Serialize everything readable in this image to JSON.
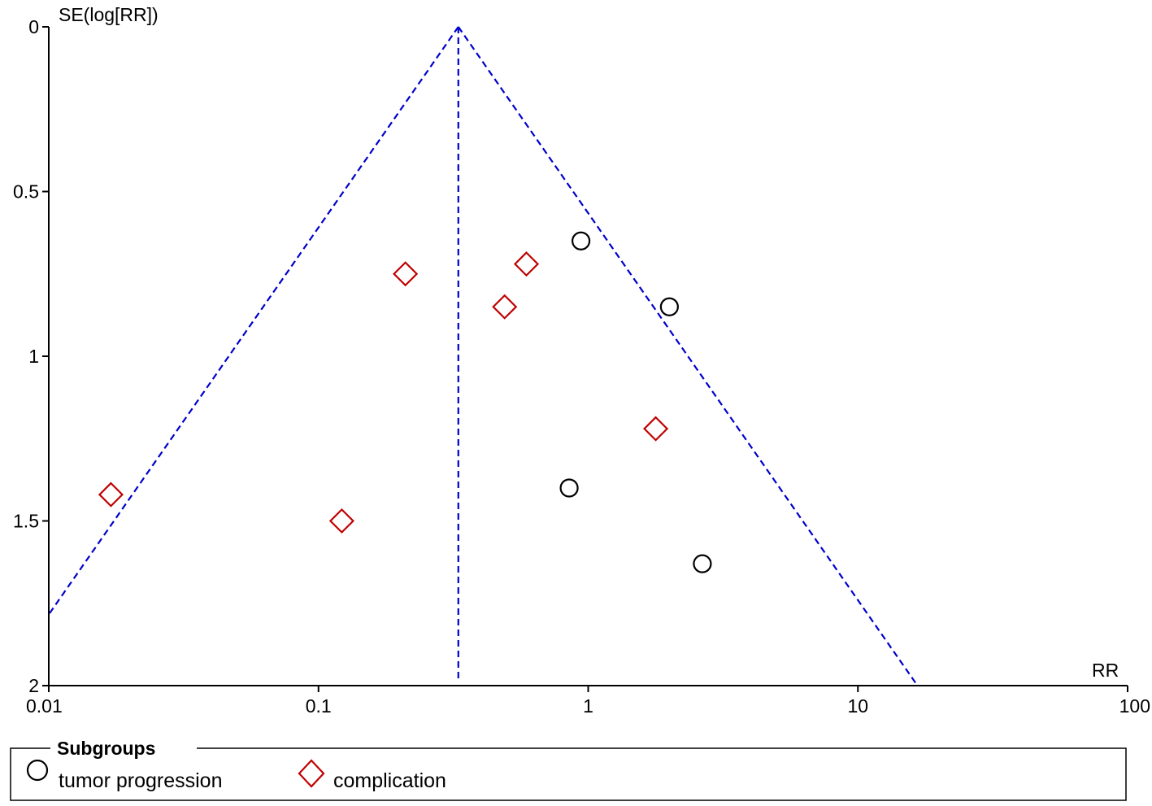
{
  "chart_data": {
    "type": "scatter",
    "title": "",
    "xlabel": "RR",
    "ylabel": "SE(log[RR])",
    "x_scale": "log",
    "xlim": [
      0.01,
      100
    ],
    "ylim": [
      0,
      2
    ],
    "y_inverted": true,
    "x_ticks": [
      {
        "value": 0.01,
        "label": "0.01"
      },
      {
        "value": 0.1,
        "label": "0.1"
      },
      {
        "value": 1,
        "label": "1"
      },
      {
        "value": 10,
        "label": "10"
      },
      {
        "value": 100,
        "label": "100"
      }
    ],
    "y_ticks": [
      {
        "value": 0,
        "label": "0"
      },
      {
        "value": 0.5,
        "label": "0.5"
      },
      {
        "value": 1,
        "label": "1"
      },
      {
        "value": 1.5,
        "label": "1.5"
      },
      {
        "value": 2,
        "label": "2"
      }
    ],
    "pooled_estimate": 0.33,
    "funnel_z": 1.96,
    "grid": false,
    "legend": {
      "title": "Subgroups",
      "placement": "bottom",
      "entries": [
        {
          "name": "tumor progression",
          "marker": "circle",
          "color": "#000000"
        },
        {
          "name": "complication",
          "marker": "diamond",
          "color": "#c00000"
        }
      ]
    },
    "series": [
      {
        "name": "tumor progression",
        "marker": "circle",
        "color": "#000000",
        "points": [
          {
            "x": 0.94,
            "y": 0.65
          },
          {
            "x": 2.0,
            "y": 0.85
          },
          {
            "x": 0.85,
            "y": 1.4
          },
          {
            "x": 2.65,
            "y": 1.63
          }
        ]
      },
      {
        "name": "complication",
        "marker": "diamond",
        "color": "#c00000",
        "points": [
          {
            "x": 0.017,
            "y": 1.42
          },
          {
            "x": 0.122,
            "y": 1.5
          },
          {
            "x": 0.21,
            "y": 0.75
          },
          {
            "x": 0.49,
            "y": 0.85
          },
          {
            "x": 0.59,
            "y": 0.72
          },
          {
            "x": 1.78,
            "y": 1.22
          }
        ]
      }
    ],
    "funnel_color": "#0000cc"
  }
}
